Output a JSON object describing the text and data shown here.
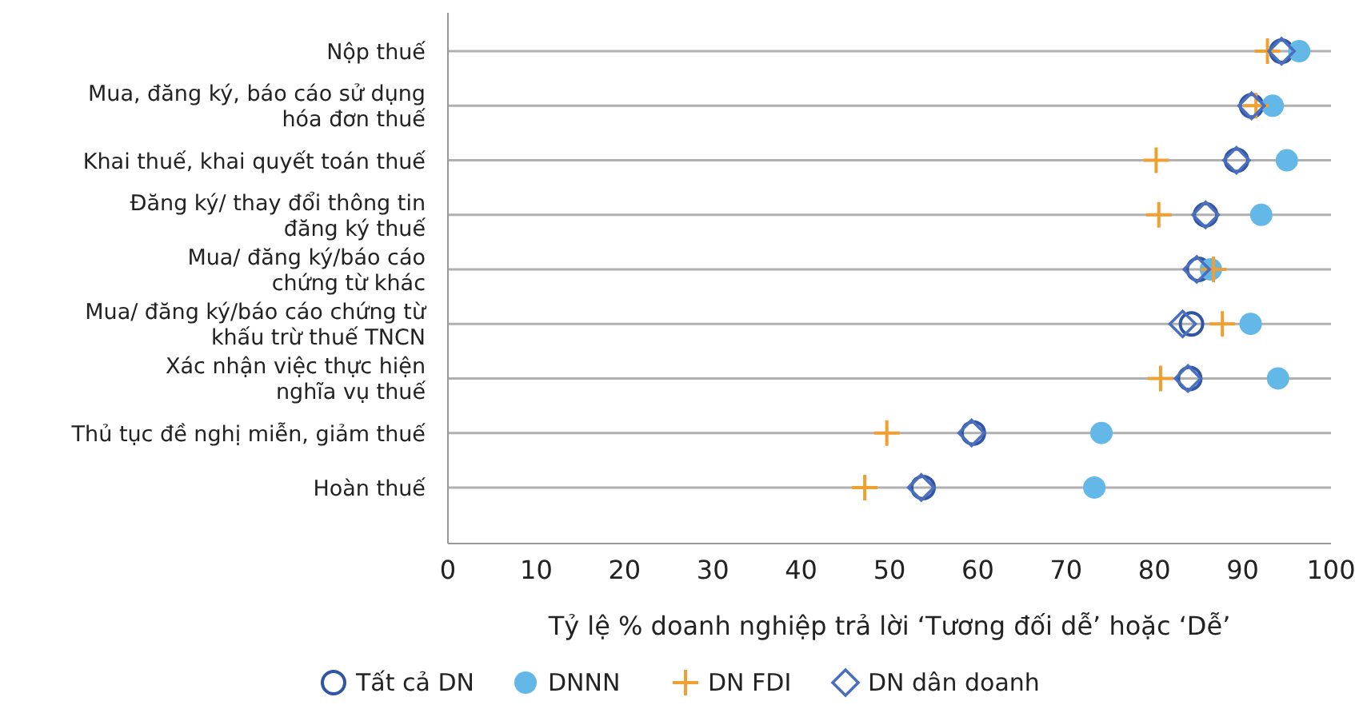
{
  "chart_data": {
    "type": "scatter",
    "orientation": "horizontal",
    "xlabel": "Tỷ lệ % doanh nghiệp trả lời ‘Tương đối dễ’ hoặc ‘Dễ’",
    "categories": [
      "Nộp thuế",
      "Mua, đăng ký, báo cáo sử dụng\nhóa đơn thuế",
      "Khai thuế, khai quyết toán thuế",
      "Đăng ký/ thay đổi thông tin\nđăng ký thuế",
      "Mua/ đăng ký/báo cáo\nchứng từ khác",
      "Mua/ đăng ký/báo cáo chứng từ\nkhấu trừ thuế TNCN",
      "Xác nhận việc thực hiện\nnghĩa vụ thuế",
      "Thủ tục đề nghị miễn, giảm thuế",
      "Hoàn thuế"
    ],
    "series": [
      {
        "name": "Tất cả DN",
        "color": "#2f55a4",
        "marker": "circle",
        "values": [
          94.4,
          91.0,
          89.3,
          85.8,
          85.0,
          84.2,
          84.0,
          59.5,
          53.8
        ]
      },
      {
        "name": "DNNN",
        "color": "#63b8e8",
        "marker": "circle",
        "values": [
          96.4,
          93.4,
          95.0,
          92.1,
          86.4,
          90.9,
          94.0,
          74.0,
          73.2
        ]
      },
      {
        "name": "DN FDI",
        "color": "#f0a030",
        "marker": "cross",
        "values": [
          92.8,
          91.5,
          80.2,
          80.5,
          86.7,
          87.7,
          80.7,
          49.7,
          47.2
        ]
      },
      {
        "name": "DN dân doanh",
        "color": "#4a6fc0",
        "marker": "diamond",
        "values": [
          94.4,
          91.0,
          89.3,
          85.8,
          84.8,
          83.2,
          83.8,
          59.3,
          53.6
        ]
      }
    ],
    "xlim": [
      0,
      100
    ],
    "xticks": [
      0,
      10,
      20,
      30,
      40,
      50,
      60,
      70,
      80,
      90,
      100
    ],
    "grid": "y",
    "legend": "bottom"
  }
}
